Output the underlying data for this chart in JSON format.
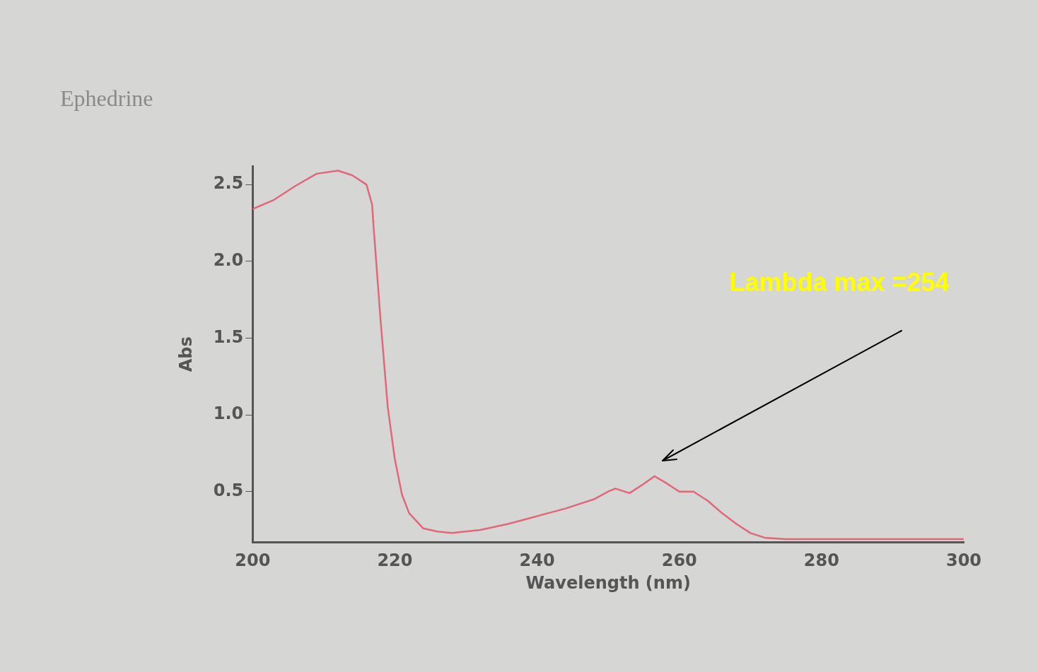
{
  "chart_data": {
    "type": "line",
    "title": "Ephedrine",
    "xlabel": "Wavelength (nm)",
    "ylabel": "Abs",
    "annotations": [
      "Lambda max =254"
    ],
    "series": [
      {
        "color": "#e06878",
        "x": [
          200,
          203,
          206,
          209,
          212,
          214,
          216,
          216.8,
          217,
          218,
          219,
          220,
          221,
          222,
          224,
          226,
          228,
          232,
          236,
          240,
          244,
          248,
          250,
          251,
          253,
          255,
          256.5,
          258,
          260,
          262,
          264,
          266,
          268,
          270,
          272,
          275,
          280,
          290,
          300
        ],
        "values": [
          2.34,
          2.4,
          2.49,
          2.57,
          2.59,
          2.56,
          2.5,
          2.37,
          2.23,
          1.61,
          1.05,
          0.71,
          0.48,
          0.36,
          0.26,
          0.24,
          0.23,
          0.25,
          0.29,
          0.34,
          0.39,
          0.45,
          0.5,
          0.52,
          0.49,
          0.55,
          0.6,
          0.56,
          0.5,
          0.5,
          0.44,
          0.36,
          0.29,
          0.23,
          0.2,
          0.19,
          0.19,
          0.19,
          0.19
        ]
      }
    ],
    "xlim": [
      200,
      300
    ],
    "xticks": [
      200,
      220,
      240,
      260,
      280,
      300
    ],
    "ylim": [
      0.17,
      2.62
    ],
    "yticks": [
      {
        "value": 0.5,
        "label": "0.5"
      },
      {
        "value": 1,
        "label": "1.0"
      },
      {
        "value": 1.5,
        "label": "1.5"
      },
      {
        "value": 2,
        "label": "2.0"
      },
      {
        "value": 2.5,
        "label": "2.5"
      }
    ],
    "grid": false,
    "legend": false,
    "marker": "none",
    "line_style": "solid"
  }
}
